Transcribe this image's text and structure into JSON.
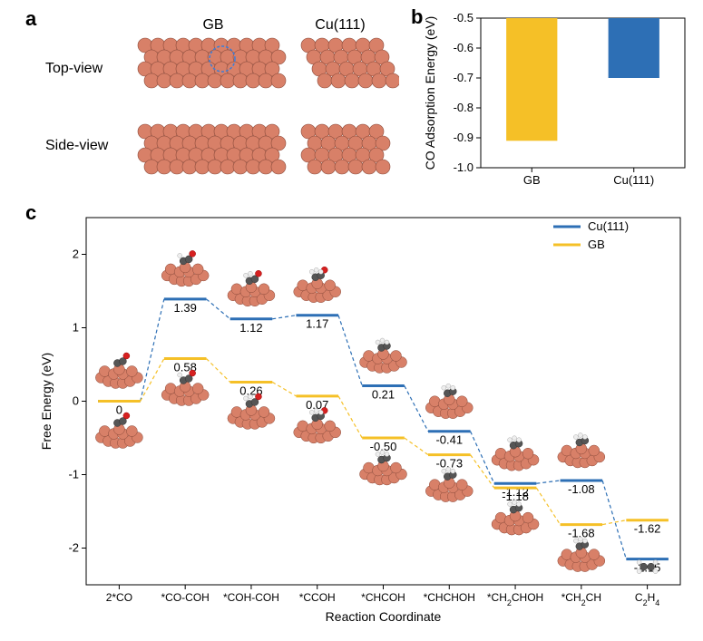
{
  "panelA": {
    "label": "a",
    "col_labels": [
      "GB",
      "Cu(111)"
    ],
    "row_labels": [
      "Top-view",
      "Side-view"
    ],
    "atom_color": "#d88068",
    "atom_edge": "#8b4a3a",
    "highlight_circle_color": "#3b7dd8"
  },
  "panelB": {
    "label": "b",
    "ylabel": "CO Adsorption Energy (eV)",
    "ylim": [
      -0.5,
      -1.0
    ],
    "yticks": [
      -0.5,
      -0.6,
      -0.7,
      -0.8,
      -0.9,
      -1.0
    ],
    "categories": [
      "GB",
      "Cu(111)"
    ],
    "values": [
      -0.91,
      -0.7
    ],
    "bar_colors": [
      "#f5c027",
      "#2d6fb5"
    ],
    "bar_width": 0.5,
    "background": "#ffffff",
    "axis_color": "#000000",
    "tick_fontsize": 13,
    "label_fontsize": 14
  },
  "panelC": {
    "label": "c",
    "xlabel": "Reaction Coordinate",
    "ylabel": "Free Energy (eV)",
    "ylim": [
      -2.5,
      2.5
    ],
    "yticks": [
      -2,
      -1,
      0,
      1,
      2
    ],
    "x_categories": [
      "2*CO",
      "*CO-COH",
      "*COH-COH",
      "*CCOH",
      "*CHCOH",
      "*CHCHOH",
      "*CH₂CHOH",
      "*CH₂CH",
      "C₂H₄"
    ],
    "x_category_labels": [
      "2*CO",
      "*CO-COH",
      "*COH-COH",
      "*CCOH",
      "*CHCOH",
      "*CHCHOH",
      "*CH2CHOH",
      "*CH2CH",
      "C2H4"
    ],
    "series": [
      {
        "name": "Cu(111)",
        "color": "#2d6fb5",
        "values": [
          0,
          1.39,
          1.12,
          1.17,
          0.21,
          -0.41,
          -1.12,
          -1.08,
          -2.15
        ],
        "show_labels": [
          null,
          "1.39",
          "1.12",
          "1.17",
          "0.21",
          "-0.41",
          "-1.12",
          "-1.08",
          "-2.15"
        ]
      },
      {
        "name": "GB",
        "color": "#f5c027",
        "values": [
          0,
          0.58,
          0.26,
          0.07,
          -0.5,
          -0.73,
          -1.18,
          -1.68,
          -1.62
        ],
        "show_labels": [
          "0",
          "0.58",
          "0.26",
          "0.07",
          "-0.50",
          "-0.73",
          "-1.18",
          "-1.68",
          "-1.62"
        ]
      }
    ],
    "legend": [
      {
        "name": "Cu(111)",
        "color": "#2d6fb5"
      },
      {
        "name": "GB",
        "color": "#f5c027"
      }
    ],
    "line_width": 3,
    "dash_connector": "4,3",
    "label_fontsize": 14,
    "tick_fontsize": 13,
    "value_fontsize": 13,
    "atom_colors": {
      "cu": "#d88068",
      "cu_edge": "#8b4a3a",
      "o": "#d62020",
      "c": "#555555",
      "h": "#eeeeee",
      "h_edge": "#aaaaaa"
    }
  }
}
